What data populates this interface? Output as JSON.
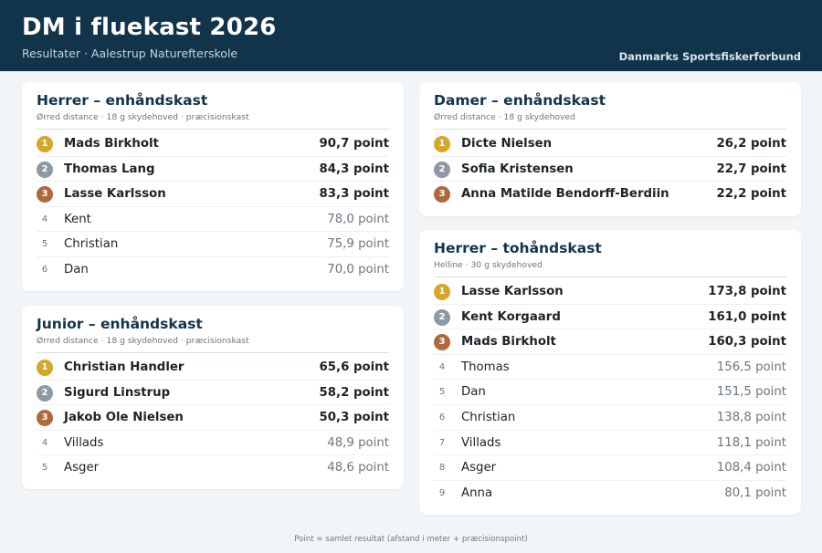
{
  "header": {
    "title": "DM i fluekast 2026",
    "subtitle": "Resultater · Aalestrup Naturefterskole",
    "organization": "Danmarks Sportsfiskerforbund"
  },
  "colors": {
    "header_bg": "#12344a",
    "gold": "#d4a72c",
    "silver": "#8f99a3",
    "bronze": "#b0693e"
  },
  "cards": [
    {
      "title": "Herrer – enhåndskast",
      "description": "Ørred distance · 18 g skydehoved · præcisionskast",
      "results": [
        {
          "rank": "1",
          "name": "Mads Birkholt",
          "score": "90,7 point"
        },
        {
          "rank": "2",
          "name": "Thomas Lang",
          "score": "84,3 point"
        },
        {
          "rank": "3",
          "name": "Lasse Karlsson",
          "score": "83,3 point"
        },
        {
          "rank": "4",
          "name": "Kent",
          "score": "78,0 point"
        },
        {
          "rank": "5",
          "name": "Christian",
          "score": "75,9 point"
        },
        {
          "rank": "6",
          "name": "Dan",
          "score": "70,0 point"
        }
      ]
    },
    {
      "title": "Junior – enhåndskast",
      "description": "Ørred distance · 18 g skydehoved · præcisionskast",
      "results": [
        {
          "rank": "1",
          "name": "Christian Handler",
          "score": "65,6 point"
        },
        {
          "rank": "2",
          "name": "Sigurd Linstrup",
          "score": "58,2 point"
        },
        {
          "rank": "3",
          "name": "Jakob Ole Nielsen",
          "score": "50,3 point"
        },
        {
          "rank": "4",
          "name": "Villads",
          "score": "48,9 point"
        },
        {
          "rank": "5",
          "name": "Asger",
          "score": "48,6 point"
        }
      ]
    },
    {
      "title": "Damer – enhåndskast",
      "description": "Ørred distance · 18 g skydehoved",
      "results": [
        {
          "rank": "1",
          "name": "Dicte Nielsen",
          "score": "26,2 point"
        },
        {
          "rank": "2",
          "name": "Sofia Kristensen",
          "score": "22,7 point"
        },
        {
          "rank": "3",
          "name": "Anna Matilde Bendorff-Berdiin",
          "score": "22,2 point"
        }
      ]
    },
    {
      "title": "Herrer – tohåndskast",
      "description": "Helline · 30 g skydehoved",
      "results": [
        {
          "rank": "1",
          "name": "Lasse Karlsson",
          "score": "173,8 point"
        },
        {
          "rank": "2",
          "name": "Kent Korgaard",
          "score": "161,0 point"
        },
        {
          "rank": "3",
          "name": "Mads Birkholt",
          "score": "160,3 point"
        },
        {
          "rank": "4",
          "name": "Thomas",
          "score": "156,5 point"
        },
        {
          "rank": "5",
          "name": "Dan",
          "score": "151,5 point"
        },
        {
          "rank": "6",
          "name": "Christian",
          "score": "138,8 point"
        },
        {
          "rank": "7",
          "name": "Villads",
          "score": "118,1 point"
        },
        {
          "rank": "8",
          "name": "Asger",
          "score": "108,4 point"
        },
        {
          "rank": "9",
          "name": "Anna",
          "score": "80,1 point"
        }
      ]
    }
  ],
  "footer": "Point = samlet resultat (afstand i meter + præcisionspoint)"
}
